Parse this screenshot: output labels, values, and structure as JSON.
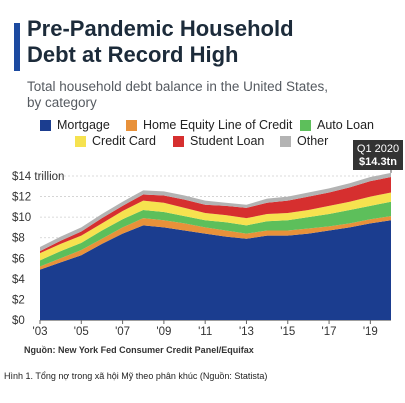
{
  "header": {
    "title_line1": "Pre-Pandemic Household",
    "title_line2": "Debt at Record High",
    "subtitle_line1": "Total household debt balance in the United States,",
    "subtitle_line2": "by category"
  },
  "footer": {
    "source": "Nguồn: New York Fed Consumer Credit Panel/Equifax",
    "caption": "Hình 1. Tổng nợ trong xã hội Mỹ theo phân khúc (Nguồn: Statista)"
  },
  "colors": {
    "accent": "#1c4aa0",
    "mortgage": "#1b3d8f",
    "heloc": "#e8913a",
    "auto": "#5dbf5b",
    "credit": "#f6e24f",
    "student": "#d62f2f",
    "other": "#b3b3b3"
  },
  "chart_data": {
    "type": "area",
    "stacked": true,
    "title": "Pre-Pandemic Household Debt at Record High",
    "subtitle": "Total household debt balance in the United States, by category",
    "x": [
      2003,
      2004,
      2005,
      2006,
      2007,
      2008,
      2009,
      2010,
      2011,
      2012,
      2013,
      2014,
      2015,
      2016,
      2017,
      2018,
      2019,
      2020
    ],
    "ylim": [
      0,
      14
    ],
    "yticks": [
      0,
      2,
      4,
      6,
      8,
      10,
      12,
      14
    ],
    "ytick_labels": [
      "$0",
      "$2",
      "$4",
      "$6",
      "$8",
      "$10",
      "$12",
      "$14 trillion"
    ],
    "xtick_values": [
      2003,
      2005,
      2007,
      2009,
      2011,
      2013,
      2015,
      2017,
      2019
    ],
    "xtick_labels": [
      "'03",
      "'05",
      "'07",
      "'09",
      "'11",
      "'13",
      "'15",
      "'17",
      "'19"
    ],
    "grid": true,
    "legend_position": "top",
    "series": [
      {
        "name": "Mortgage",
        "color": "#1b3d8f",
        "values": [
          4.9,
          5.6,
          6.3,
          7.4,
          8.4,
          9.2,
          9.0,
          8.7,
          8.4,
          8.1,
          7.9,
          8.2,
          8.2,
          8.4,
          8.7,
          9.0,
          9.4,
          9.7
        ]
      },
      {
        "name": "Home Equity Line of Credit",
        "color": "#e8913a",
        "values": [
          0.3,
          0.4,
          0.5,
          0.5,
          0.6,
          0.7,
          0.7,
          0.7,
          0.6,
          0.6,
          0.5,
          0.5,
          0.5,
          0.5,
          0.4,
          0.4,
          0.4,
          0.4
        ]
      },
      {
        "name": "Auto Loan",
        "color": "#5dbf5b",
        "values": [
          0.6,
          0.7,
          0.7,
          0.8,
          0.8,
          0.8,
          0.8,
          0.7,
          0.7,
          0.8,
          0.8,
          0.9,
          1.0,
          1.1,
          1.2,
          1.3,
          1.3,
          1.4
        ]
      },
      {
        "name": "Credit Card",
        "color": "#f6e24f",
        "values": [
          0.7,
          0.7,
          0.7,
          0.7,
          0.8,
          0.9,
          0.9,
          0.8,
          0.7,
          0.7,
          0.7,
          0.7,
          0.7,
          0.7,
          0.8,
          0.8,
          0.9,
          0.9
        ]
      },
      {
        "name": "Student Loan",
        "color": "#d62f2f",
        "values": [
          0.2,
          0.3,
          0.4,
          0.5,
          0.5,
          0.6,
          0.7,
          0.8,
          0.8,
          0.9,
          1.0,
          1.1,
          1.2,
          1.3,
          1.3,
          1.4,
          1.5,
          1.5
        ]
      },
      {
        "name": "Other",
        "color": "#b3b3b3",
        "values": [
          0.4,
          0.4,
          0.4,
          0.4,
          0.4,
          0.4,
          0.4,
          0.4,
          0.4,
          0.3,
          0.3,
          0.4,
          0.4,
          0.4,
          0.4,
          0.4,
          0.4,
          0.4
        ]
      }
    ],
    "annotation": {
      "line1": "Q1 2020",
      "line2": "$14.3tn",
      "x": 2020,
      "y": 14.3
    }
  }
}
